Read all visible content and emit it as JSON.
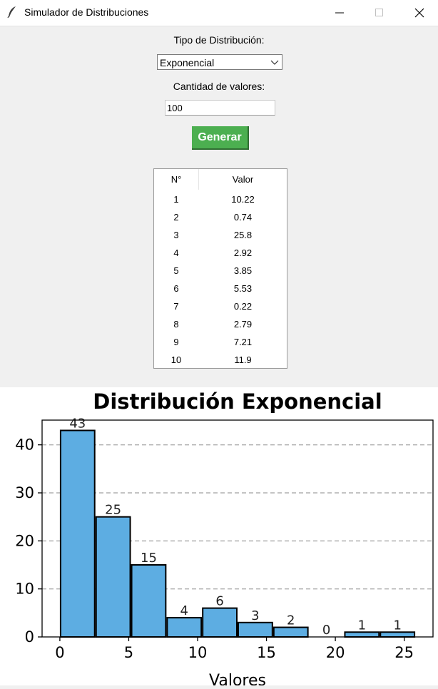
{
  "window": {
    "title": "Simulador de Distribuciones",
    "controls": [
      "minimize-icon",
      "maximize-icon",
      "close-icon"
    ]
  },
  "form": {
    "dist_label": "Tipo de Distribución:",
    "dist_value": "Exponencial",
    "count_label": "Cantidad de valores:",
    "count_value": "100",
    "generate_label": "Generar"
  },
  "table": {
    "headers": [
      "N°",
      "Valor"
    ],
    "rows": [
      [
        "1",
        "10.22"
      ],
      [
        "2",
        "0.74"
      ],
      [
        "3",
        "25.8"
      ],
      [
        "4",
        "2.92"
      ],
      [
        "5",
        "3.85"
      ],
      [
        "6",
        "5.53"
      ],
      [
        "7",
        "0.22"
      ],
      [
        "8",
        "2.79"
      ],
      [
        "9",
        "7.21"
      ],
      [
        "10",
        "11.9"
      ]
    ]
  },
  "colors": {
    "bar": "#5dade2",
    "button": "#4caf50"
  },
  "chart_data": {
    "type": "bar",
    "title": "Distribución Exponencial",
    "xlabel": "Valores",
    "ylabel": "",
    "bin_edges": [
      0,
      2.58,
      5.16,
      7.74,
      10.32,
      12.9,
      15.48,
      18.06,
      20.64,
      23.22,
      25.8
    ],
    "values": [
      43,
      25,
      15,
      4,
      6,
      3,
      2,
      0,
      1,
      1
    ],
    "xticks": [
      0,
      5,
      10,
      15,
      20,
      25
    ],
    "yticks": [
      0,
      10,
      20,
      30,
      40
    ],
    "xlim": [
      -1.29,
      27.09
    ],
    "ylim": [
      0,
      45.15
    ],
    "grid": "y-dashed"
  }
}
